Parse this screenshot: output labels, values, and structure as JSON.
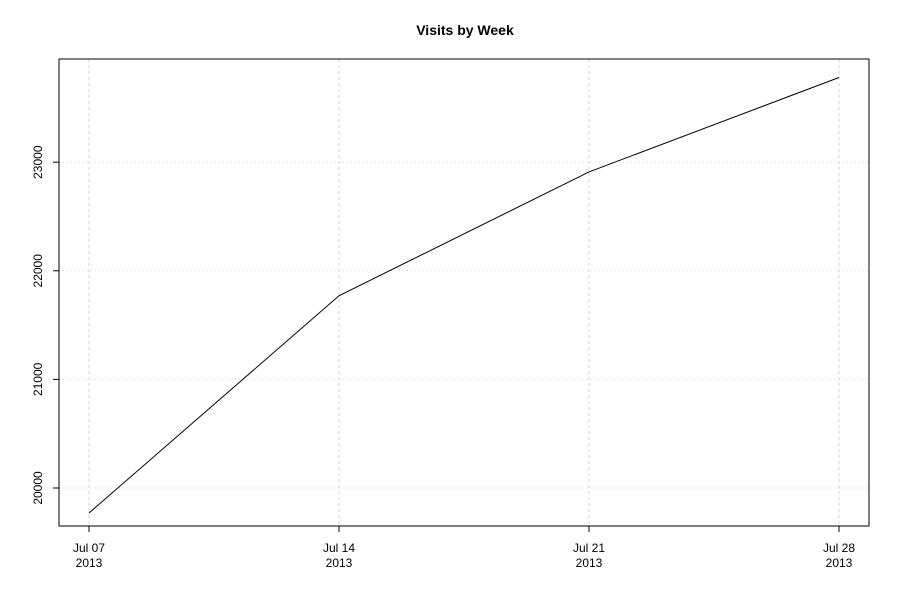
{
  "chart_data": {
    "type": "line",
    "title": "Visits by Week",
    "xlabel": "",
    "ylabel": "",
    "x": [
      "2013-07-07",
      "2013-07-14",
      "2013-07-21",
      "2013-07-28"
    ],
    "x_tick_labels": [
      {
        "line1": "Jul 07",
        "line2": "2013"
      },
      {
        "line1": "Jul 14",
        "line2": "2013"
      },
      {
        "line1": "Jul 21",
        "line2": "2013"
      },
      {
        "line1": "Jul 28",
        "line2": "2013"
      }
    ],
    "y_ticks": [
      20000,
      21000,
      22000,
      23000
    ],
    "ylim": [
      19650,
      23950
    ],
    "grid": true,
    "legend": "none",
    "series": [
      {
        "values": [
          19770,
          21770,
          22910,
          23780
        ],
        "color": "#000000"
      }
    ],
    "colors": {
      "axis": "#000000",
      "grid": "#d3d3d3",
      "line": "#000000"
    }
  }
}
